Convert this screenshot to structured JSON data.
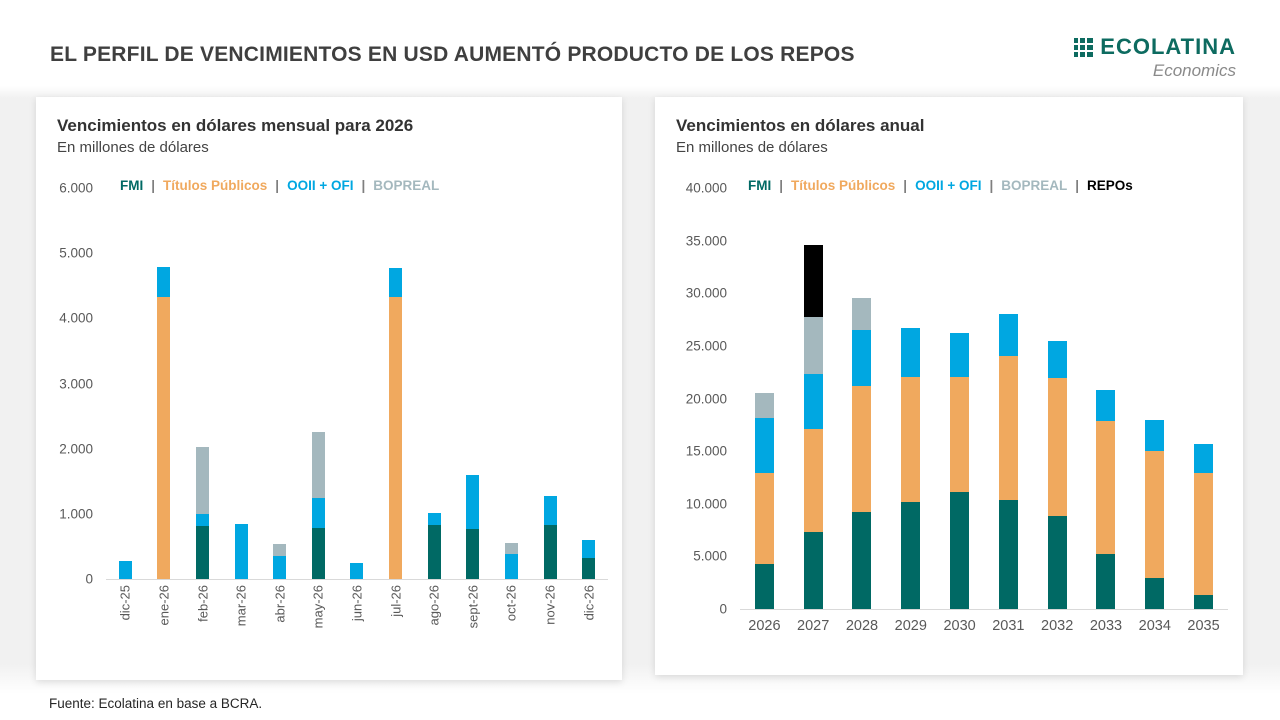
{
  "page": {
    "title": "EL PERFIL DE VENCIMIENTOS EN USD AUMENTÓ PRODUCTO DE LOS REPOS",
    "footer": "Fuente: Ecolatina en base a BCRA.",
    "logo": {
      "name": "ECOLATINA",
      "tagline": "Economics",
      "color": "#0d6b60"
    }
  },
  "colors": {
    "fmi": "#006964",
    "titulos_publicos": "#f0a95e",
    "ooii_ofi": "#00a7e1",
    "bopreal": "#a4b8be",
    "repos": "#000000",
    "legend_separator_color": "#7f7f7f"
  },
  "legend_separator": "|",
  "chart_data": [
    {
      "id": "monthly",
      "type": "bar",
      "stacked": true,
      "title": "Vencimientos en dólares mensual para 2026",
      "subtitle": "En millones de dólares",
      "categories": [
        "dic-25",
        "ene-26",
        "feb-26",
        "mar-26",
        "abr-26",
        "may-26",
        "jun-26",
        "jul-26",
        "ago-26",
        "sept-26",
        "oct-26",
        "nov-26",
        "dic-26"
      ],
      "series": [
        {
          "name": "FMI",
          "color": "#006964",
          "values": [
            0,
            0,
            820,
            0,
            0,
            790,
            0,
            0,
            830,
            770,
            0,
            830,
            320
          ]
        },
        {
          "name": "Títulos Públicos",
          "color": "#f0a95e",
          "values": [
            0,
            4320,
            0,
            0,
            0,
            0,
            0,
            4320,
            0,
            0,
            0,
            0,
            0
          ]
        },
        {
          "name": "OOII + OFI",
          "color": "#00a7e1",
          "values": [
            270,
            460,
            180,
            840,
            360,
            460,
            250,
            450,
            180,
            830,
            390,
            450,
            280
          ]
        },
        {
          "name": "BOPREAL",
          "color": "#a4b8be",
          "values": [
            0,
            0,
            1030,
            0,
            180,
            1010,
            0,
            0,
            0,
            0,
            170,
            0,
            0
          ]
        }
      ],
      "ylim": [
        0,
        6000
      ],
      "yticks": [
        {
          "v": 0,
          "label": "0"
        },
        {
          "v": 1000,
          "label": "1.000"
        },
        {
          "v": 2000,
          "label": "2.000"
        },
        {
          "v": 3000,
          "label": "3.000"
        },
        {
          "v": 4000,
          "label": "4.000"
        },
        {
          "v": 5000,
          "label": "5.000"
        },
        {
          "v": 6000,
          "label": "6.000"
        }
      ],
      "legend": [
        "FMI",
        "Títulos Públicos",
        "OOII + OFI",
        "BOPREAL"
      ],
      "grid": false,
      "legend_position": "top"
    },
    {
      "id": "annual",
      "type": "bar",
      "stacked": true,
      "title": "Vencimientos en dólares anual",
      "subtitle": "En millones de dólares",
      "categories": [
        "2026",
        "2027",
        "2028",
        "2029",
        "2030",
        "2031",
        "2032",
        "2033",
        "2034",
        "2035"
      ],
      "series": [
        {
          "name": "FMI",
          "color": "#006964",
          "values": [
            4300,
            7350,
            9200,
            10200,
            11100,
            10400,
            8800,
            5200,
            2950,
            1300
          ]
        },
        {
          "name": "Títulos Públicos",
          "color": "#f0a95e",
          "values": [
            8600,
            9750,
            12000,
            11900,
            10900,
            13700,
            13100,
            12650,
            12050,
            11600
          ]
        },
        {
          "name": "OOII + OFI",
          "color": "#00a7e1",
          "values": [
            5200,
            5200,
            5300,
            4700,
            4200,
            4000,
            3500,
            2950,
            2950,
            2750
          ]
        },
        {
          "name": "BOPREAL",
          "color": "#a4b8be",
          "values": [
            2400,
            5400,
            3000,
            0,
            0,
            0,
            0,
            0,
            0,
            0
          ]
        },
        {
          "name": "REPOs",
          "color": "#000000",
          "values": [
            0,
            6800,
            0,
            0,
            0,
            0,
            0,
            0,
            0,
            0
          ]
        }
      ],
      "ylim": [
        0,
        40000
      ],
      "yticks": [
        {
          "v": 0,
          "label": "0"
        },
        {
          "v": 5000,
          "label": "5.000"
        },
        {
          "v": 10000,
          "label": "10.000"
        },
        {
          "v": 15000,
          "label": "15.000"
        },
        {
          "v": 20000,
          "label": "20.000"
        },
        {
          "v": 25000,
          "label": "25.000"
        },
        {
          "v": 30000,
          "label": "30.000"
        },
        {
          "v": 35000,
          "label": "35.000"
        },
        {
          "v": 40000,
          "label": "40.000"
        }
      ],
      "legend": [
        "FMI",
        "Títulos Públicos",
        "OOII + OFI",
        "BOPREAL",
        "REPOs"
      ],
      "grid": false,
      "legend_position": "top"
    }
  ]
}
